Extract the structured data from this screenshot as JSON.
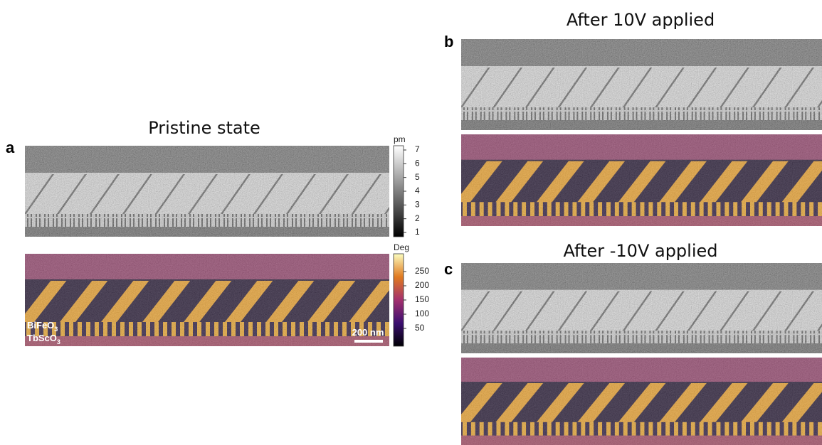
{
  "panels": [
    {
      "letter": "a",
      "title": "Pristine state"
    },
    {
      "letter": "b",
      "title": "After 10V applied"
    },
    {
      "letter": "c",
      "title": "After -10V applied"
    }
  ],
  "amplitude_colorbar": {
    "unit": "pm",
    "ticks": [
      "7",
      "6",
      "5",
      "4",
      "3",
      "2",
      "1"
    ]
  },
  "phase_colorbar": {
    "unit": "Deg",
    "ticks": [
      "250",
      "200",
      "150",
      "100",
      "50"
    ]
  },
  "layers": [
    {
      "text": "BiFeO",
      "sub": "3"
    },
    {
      "text": "TbScO",
      "sub": "3"
    }
  ],
  "scale_bar": "200 nm"
}
